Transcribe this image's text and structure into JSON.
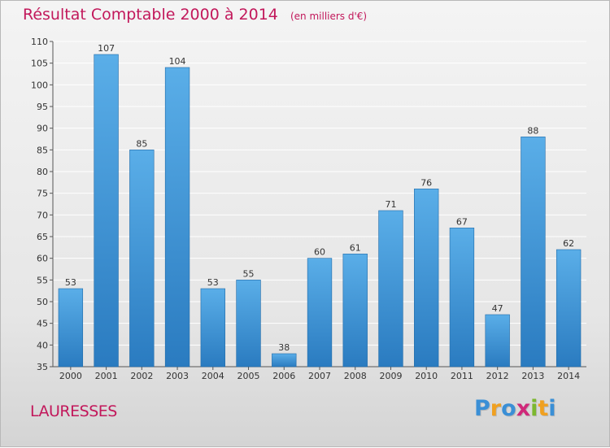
{
  "title": "Résultat Comptable 2000 à 2014",
  "subtitle": "(en milliers d'€)",
  "commune": "LAURESSES",
  "logo": {
    "text": "Proxiti",
    "letters": [
      {
        "ch": "P",
        "color": "#3a8fd6"
      },
      {
        "ch": "r",
        "color": "#f0a020"
      },
      {
        "ch": "o",
        "color": "#3a8fd6"
      },
      {
        "ch": "x",
        "color": "#d0297a"
      },
      {
        "ch": "i",
        "color": "#7cb82f"
      },
      {
        "ch": "t",
        "color": "#f0a020"
      },
      {
        "ch": "i",
        "color": "#3a8fd6"
      }
    ]
  },
  "colors": {
    "title": "#c2185b",
    "bar_top": "#5aaee8",
    "bar_bottom": "#2a7bc0",
    "bar_edge": "#1f6aa8",
    "grid": "#ffffff",
    "text": "#333333"
  },
  "chart_data": {
    "type": "bar",
    "title": "Résultat Comptable 2000 à 2014",
    "subtitle": "(en milliers d'€)",
    "categories": [
      "2000",
      "2001",
      "2002",
      "2003",
      "2004",
      "2005",
      "2006",
      "2007",
      "2008",
      "2009",
      "2010",
      "2011",
      "2012",
      "2013",
      "2014"
    ],
    "values": [
      53,
      107,
      85,
      104,
      53,
      55,
      38,
      60,
      61,
      71,
      76,
      67,
      47,
      88,
      62
    ],
    "ylim": [
      35,
      110
    ],
    "yticks": [
      35,
      40,
      45,
      50,
      55,
      60,
      65,
      70,
      75,
      80,
      85,
      90,
      95,
      100,
      105,
      110
    ],
    "grid": true,
    "legend": "none",
    "xlabel": "",
    "ylabel": ""
  }
}
